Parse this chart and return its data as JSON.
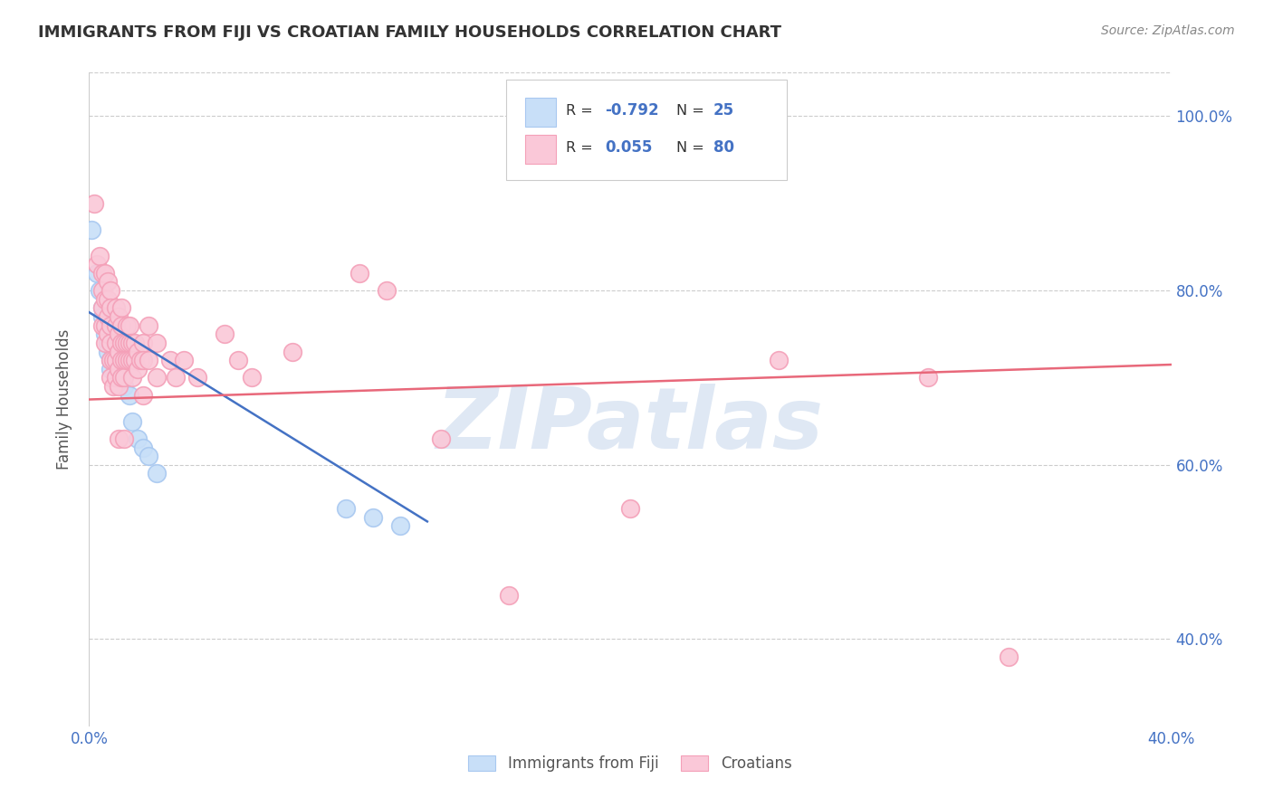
{
  "title": "IMMIGRANTS FROM FIJI VS CROATIAN FAMILY HOUSEHOLDS CORRELATION CHART",
  "source": "Source: ZipAtlas.com",
  "ylabel": "Family Households",
  "xlim": [
    0.0,
    0.4
  ],
  "ylim": [
    0.3,
    1.05
  ],
  "fiji_color": "#a8c8f0",
  "fiji_face_color": "#c8dff8",
  "croatian_color": "#f4a0b8",
  "croatian_face_color": "#fac8d8",
  "fiji_line_color": "#4472c4",
  "croatian_line_color": "#e8687a",
  "legend_fiji_label": "Immigrants from Fiji",
  "legend_croatian_label": "Croatians",
  "fiji_R": -0.792,
  "fiji_N": 25,
  "croatian_R": 0.055,
  "croatian_N": 80,
  "watermark_text": "ZIPatlas",
  "ytick_positions": [
    0.4,
    0.6,
    0.8,
    1.0
  ],
  "ytick_labels": [
    "40.0%",
    "60.0%",
    "80.0%",
    "100.0%"
  ],
  "xtick_positions": [
    0.0,
    0.05,
    0.1,
    0.15,
    0.2,
    0.25,
    0.3,
    0.35,
    0.4
  ],
  "fiji_scatter": [
    [
      0.001,
      0.87
    ],
    [
      0.003,
      0.82
    ],
    [
      0.004,
      0.8
    ],
    [
      0.005,
      0.78
    ],
    [
      0.005,
      0.77
    ],
    [
      0.006,
      0.76
    ],
    [
      0.006,
      0.75
    ],
    [
      0.007,
      0.74
    ],
    [
      0.007,
      0.73
    ],
    [
      0.008,
      0.72
    ],
    [
      0.008,
      0.71
    ],
    [
      0.009,
      0.73
    ],
    [
      0.01,
      0.74
    ],
    [
      0.011,
      0.72
    ],
    [
      0.012,
      0.7
    ],
    [
      0.013,
      0.69
    ],
    [
      0.015,
      0.68
    ],
    [
      0.016,
      0.65
    ],
    [
      0.018,
      0.63
    ],
    [
      0.02,
      0.62
    ],
    [
      0.022,
      0.61
    ],
    [
      0.025,
      0.59
    ],
    [
      0.095,
      0.55
    ],
    [
      0.105,
      0.54
    ],
    [
      0.115,
      0.53
    ]
  ],
  "croatian_scatter": [
    [
      0.002,
      0.9
    ],
    [
      0.003,
      0.83
    ],
    [
      0.004,
      0.84
    ],
    [
      0.005,
      0.82
    ],
    [
      0.005,
      0.8
    ],
    [
      0.005,
      0.78
    ],
    [
      0.005,
      0.76
    ],
    [
      0.006,
      0.82
    ],
    [
      0.006,
      0.79
    ],
    [
      0.006,
      0.76
    ],
    [
      0.006,
      0.74
    ],
    [
      0.007,
      0.81
    ],
    [
      0.007,
      0.79
    ],
    [
      0.007,
      0.77
    ],
    [
      0.007,
      0.75
    ],
    [
      0.008,
      0.8
    ],
    [
      0.008,
      0.78
    ],
    [
      0.008,
      0.76
    ],
    [
      0.008,
      0.74
    ],
    [
      0.008,
      0.72
    ],
    [
      0.008,
      0.7
    ],
    [
      0.009,
      0.69
    ],
    [
      0.009,
      0.72
    ],
    [
      0.01,
      0.78
    ],
    [
      0.01,
      0.76
    ],
    [
      0.01,
      0.74
    ],
    [
      0.01,
      0.72
    ],
    [
      0.01,
      0.7
    ],
    [
      0.011,
      0.77
    ],
    [
      0.011,
      0.75
    ],
    [
      0.011,
      0.73
    ],
    [
      0.011,
      0.71
    ],
    [
      0.011,
      0.69
    ],
    [
      0.011,
      0.63
    ],
    [
      0.012,
      0.78
    ],
    [
      0.012,
      0.76
    ],
    [
      0.012,
      0.74
    ],
    [
      0.012,
      0.72
    ],
    [
      0.012,
      0.7
    ],
    [
      0.013,
      0.74
    ],
    [
      0.013,
      0.72
    ],
    [
      0.013,
      0.7
    ],
    [
      0.013,
      0.63
    ],
    [
      0.014,
      0.76
    ],
    [
      0.014,
      0.74
    ],
    [
      0.014,
      0.72
    ],
    [
      0.015,
      0.76
    ],
    [
      0.015,
      0.74
    ],
    [
      0.015,
      0.72
    ],
    [
      0.016,
      0.74
    ],
    [
      0.016,
      0.72
    ],
    [
      0.016,
      0.7
    ],
    [
      0.017,
      0.74
    ],
    [
      0.017,
      0.72
    ],
    [
      0.018,
      0.73
    ],
    [
      0.018,
      0.71
    ],
    [
      0.019,
      0.72
    ],
    [
      0.02,
      0.74
    ],
    [
      0.02,
      0.72
    ],
    [
      0.02,
      0.68
    ],
    [
      0.022,
      0.76
    ],
    [
      0.022,
      0.72
    ],
    [
      0.025,
      0.74
    ],
    [
      0.025,
      0.7
    ],
    [
      0.03,
      0.72
    ],
    [
      0.032,
      0.7
    ],
    [
      0.035,
      0.72
    ],
    [
      0.04,
      0.7
    ],
    [
      0.05,
      0.75
    ],
    [
      0.055,
      0.72
    ],
    [
      0.06,
      0.7
    ],
    [
      0.075,
      0.73
    ],
    [
      0.1,
      0.82
    ],
    [
      0.11,
      0.8
    ],
    [
      0.13,
      0.63
    ],
    [
      0.155,
      0.45
    ],
    [
      0.2,
      0.55
    ],
    [
      0.255,
      0.72
    ],
    [
      0.31,
      0.7
    ],
    [
      0.34,
      0.38
    ]
  ],
  "fiji_line_x0": 0.0,
  "fiji_line_y0": 0.775,
  "fiji_line_x1": 0.125,
  "fiji_line_y1": 0.535,
  "croatian_line_x0": 0.0,
  "croatian_line_y0": 0.675,
  "croatian_line_x1": 0.4,
  "croatian_line_y1": 0.715
}
